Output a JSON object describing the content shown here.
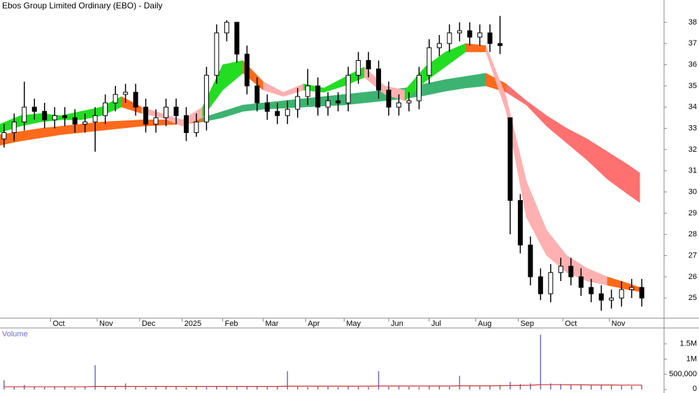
{
  "chart_data": [
    {
      "type": "candlestick",
      "title": "Ebos Group Limited Ordinary (EBO) - Daily",
      "xlim": [
        0,
        328
      ],
      "ylim": [
        24.05,
        39.05
      ],
      "yticks": [
        25,
        26,
        27,
        28,
        29,
        30,
        31,
        32,
        33,
        34,
        35,
        36,
        37,
        38
      ],
      "xticks": [
        {
          "value": 25,
          "label": "Oct"
        },
        {
          "value": 48,
          "label": "Nov"
        },
        {
          "value": 69,
          "label": "Dec"
        },
        {
          "value": 90,
          "label": "2025"
        },
        {
          "value": 110,
          "label": "Feb"
        },
        {
          "value": 130,
          "label": "Mar"
        },
        {
          "value": 151,
          "label": "Apr"
        },
        {
          "value": 170,
          "label": "May"
        },
        {
          "value": 192,
          "label": "Jun"
        },
        {
          "value": 212,
          "label": "Jul"
        },
        {
          "value": 235,
          "label": "Aug"
        },
        {
          "value": 256,
          "label": "Sep"
        },
        {
          "value": 278,
          "label": "Oct"
        },
        {
          "value": 301,
          "label": "Nov"
        }
      ],
      "up_color": "#ffffff",
      "down_color": "#000000",
      "edge_color": "#000000",
      "x": [
        2,
        7,
        12,
        17,
        22,
        27,
        32,
        37,
        42,
        47,
        52,
        57,
        62,
        67,
        72,
        77,
        82,
        87,
        92,
        97,
        102,
        107,
        112,
        117,
        122,
        127,
        132,
        137,
        142,
        147,
        152,
        157,
        162,
        167,
        172,
        177,
        182,
        187,
        192,
        197,
        202,
        207,
        212,
        217,
        222,
        227,
        232,
        237,
        242,
        247,
        252,
        257,
        262,
        267,
        272,
        277,
        282,
        287,
        292,
        297,
        302,
        307,
        312,
        317
      ],
      "open": [
        32.5,
        32.8,
        33.3,
        34.0,
        33.8,
        33.4,
        33.6,
        33.5,
        33.2,
        33.3,
        33.6,
        34.2,
        34.6,
        34.7,
        34.0,
        33.2,
        33.5,
        34.0,
        33.6,
        32.8,
        33.3,
        35.5,
        37.5,
        38.0,
        36.5,
        35.0,
        34.2,
        33.8,
        33.6,
        33.9,
        34.5,
        35.0,
        34.0,
        34.3,
        34.2,
        35.5,
        36.2,
        35.8,
        34.8,
        34.0,
        34.2,
        34.3,
        35.5,
        36.8,
        37.0,
        37.5,
        37.6,
        37.3,
        37.5,
        37.0,
        33.5,
        29.6,
        27.5,
        26.0,
        25.2,
        26.2,
        26.5,
        26.0,
        25.5,
        25.2,
        24.9,
        25.0,
        25.4,
        25.5
      ],
      "high": [
        33.2,
        33.7,
        35.2,
        34.4,
        34.2,
        34.0,
        34.0,
        33.9,
        33.7,
        34.0,
        34.6,
        35.0,
        35.1,
        35.1,
        34.4,
        33.9,
        34.4,
        34.4,
        34.0,
        33.7,
        35.9,
        37.9,
        38.1,
        38.0,
        36.9,
        35.4,
        34.6,
        34.2,
        34.3,
        34.9,
        35.8,
        35.4,
        34.7,
        34.7,
        35.9,
        36.6,
        36.6,
        36.2,
        35.2,
        34.6,
        34.7,
        35.9,
        37.2,
        37.4,
        37.9,
        38.0,
        38.0,
        37.9,
        37.9,
        38.3,
        33.5,
        29.9,
        27.9,
        26.4,
        26.6,
        26.9,
        26.9,
        26.4,
        25.9,
        25.6,
        25.4,
        25.8,
        25.9,
        25.9
      ],
      "low": [
        32.1,
        32.4,
        32.9,
        33.4,
        33.0,
        33.0,
        33.1,
        32.8,
        32.8,
        31.9,
        33.2,
        33.8,
        34.2,
        33.6,
        32.8,
        32.8,
        33.1,
        33.2,
        32.4,
        32.6,
        32.9,
        35.1,
        37.1,
        36.1,
        34.6,
        33.8,
        33.4,
        33.2,
        33.2,
        33.5,
        34.1,
        33.6,
        33.6,
        33.8,
        33.8,
        35.1,
        35.4,
        34.4,
        33.6,
        33.6,
        33.8,
        33.9,
        35.1,
        36.4,
        36.6,
        37.1,
        36.9,
        36.9,
        36.6,
        36.5,
        28.0,
        27.1,
        25.6,
        24.9,
        24.8,
        25.8,
        25.6,
        25.1,
        24.8,
        24.4,
        24.5,
        24.6,
        25.0,
        24.6
      ],
      "close": [
        32.8,
        33.3,
        34.0,
        33.8,
        33.4,
        33.6,
        33.5,
        33.2,
        33.3,
        33.6,
        34.2,
        34.6,
        34.7,
        34.0,
        33.2,
        33.5,
        34.0,
        33.6,
        32.8,
        33.3,
        35.5,
        37.5,
        38.0,
        36.5,
        35.0,
        34.2,
        33.8,
        33.6,
        33.9,
        34.5,
        35.0,
        34.0,
        34.3,
        34.2,
        35.5,
        36.2,
        35.8,
        34.8,
        34.0,
        34.2,
        34.3,
        35.5,
        36.8,
        37.0,
        37.5,
        37.6,
        37.3,
        37.5,
        37.0,
        36.9,
        29.6,
        27.5,
        26.0,
        25.2,
        26.2,
        26.5,
        26.0,
        25.5,
        25.2,
        24.9,
        25.0,
        25.4,
        25.5,
        25.0
      ],
      "bands": [
        {
          "x": [
            0,
            10,
            20,
            30,
            40,
            50,
            60,
            70,
            80,
            90,
            100,
            110,
            120,
            130,
            140,
            150,
            160,
            170,
            180,
            190,
            200,
            210,
            220,
            230,
            240,
            250,
            260,
            270,
            280,
            290,
            300,
            310,
            316
          ],
          "upper": [
            32.7,
            32.85,
            33.0,
            33.1,
            33.2,
            33.3,
            33.35,
            33.4,
            33.4,
            33.4,
            33.5,
            33.8,
            34.1,
            34.2,
            34.3,
            34.4,
            34.5,
            34.6,
            34.7,
            34.8,
            34.9,
            35.1,
            35.3,
            35.45,
            35.6,
            35.1,
            34.3,
            33.6,
            33.0,
            32.5,
            31.9,
            31.3,
            30.9
          ],
          "lower": [
            32.2,
            32.4,
            32.55,
            32.7,
            32.8,
            32.9,
            33.0,
            33.1,
            33.15,
            33.2,
            33.3,
            33.5,
            33.8,
            33.9,
            33.95,
            34.0,
            34.05,
            34.1,
            34.2,
            34.3,
            34.4,
            34.55,
            34.75,
            34.9,
            35.0,
            34.7,
            34.1,
            33.1,
            32.3,
            31.5,
            30.6,
            29.9,
            29.5
          ],
          "colors": [
            "#ff6a1a",
            "#ff6a1a",
            "#ff6a1a",
            "#ff6a1a",
            "#ff6a1a",
            "#ff6a1a",
            "#ff6a1a",
            "#ff6a1a",
            "#ff6a1a",
            "#ff6a1a",
            "#3cb371",
            "#3cb371",
            "#3cb371",
            "#3cb371",
            "#3cb371",
            "#3cb371",
            "#3cb371",
            "#3cb371",
            "#3cb371",
            "#3cb371",
            "#3cb371",
            "#3cb371",
            "#3cb371",
            "#3cb371",
            "#ff6a1a",
            "#ff7070",
            "#ff7070",
            "#ff7070",
            "#ff7070",
            "#ff7070",
            "#ff7070",
            "#ff7070"
          ]
        },
        {
          "x": [
            0,
            10,
            20,
            30,
            40,
            50,
            60,
            70,
            80,
            90,
            100,
            110,
            120,
            130,
            140,
            150,
            160,
            170,
            180,
            190,
            200,
            210,
            220,
            230,
            240,
            250,
            260,
            270,
            280,
            290,
            300,
            310,
            316
          ],
          "upper": [
            33.2,
            33.6,
            33.7,
            33.6,
            33.8,
            34.0,
            34.5,
            34.0,
            33.7,
            33.4,
            34.0,
            36.0,
            36.2,
            35.2,
            34.7,
            35.1,
            34.9,
            35.4,
            35.9,
            35.0,
            34.8,
            35.9,
            36.6,
            37.0,
            36.9,
            34.5,
            30.5,
            28.2,
            27.0,
            26.4,
            26.0,
            25.7,
            25.5
          ],
          "lower": [
            32.8,
            33.1,
            33.3,
            33.4,
            33.4,
            33.6,
            34.0,
            33.7,
            33.5,
            33.1,
            33.5,
            34.8,
            35.6,
            34.8,
            34.5,
            34.8,
            34.7,
            35.0,
            35.4,
            34.6,
            34.3,
            35.2,
            35.9,
            36.6,
            36.6,
            33.8,
            28.8,
            27.0,
            26.2,
            25.8,
            25.6,
            25.4,
            25.3
          ],
          "colors": [
            "#22dd22",
            "#22dd22",
            "#22dd22",
            "#22dd22",
            "#22dd22",
            "#22dd22",
            "#ff6a1a",
            "#ffb0b0",
            "#ffb0b0",
            "#ffb0b0",
            "#22dd22",
            "#22dd22",
            "#ff6a1a",
            "#ffb0b0",
            "#ffb0b0",
            "#22dd22",
            "#22dd22",
            "#22dd22",
            "#ffb0b0",
            "#ffb0b0",
            "#22dd22",
            "#22dd22",
            "#22dd22",
            "#ff6a1a",
            "#ffb0b0",
            "#ffb0b0",
            "#ffb0b0",
            "#ffb0b0",
            "#ffb0b0",
            "#ffb0b0",
            "#ff6a1a",
            "#ff6a1a"
          ]
        }
      ]
    },
    {
      "type": "volume",
      "title": "Volume",
      "xlim": [
        0,
        328
      ],
      "ylim": [
        0,
        2000000
      ],
      "yticks": [
        0,
        {
          "value": 500000,
          "label": "500,000"
        },
        {
          "value": 1000000,
          "label": "1M"
        },
        {
          "value": 1500000,
          "label": "1.5M"
        }
      ],
      "color": "#6b6bc8",
      "average_color": "#d03030",
      "x": [
        2,
        7,
        12,
        17,
        22,
        27,
        32,
        37,
        42,
        47,
        52,
        57,
        62,
        67,
        72,
        77,
        82,
        87,
        92,
        97,
        102,
        107,
        112,
        117,
        122,
        127,
        132,
        137,
        142,
        147,
        152,
        157,
        162,
        167,
        172,
        177,
        182,
        187,
        192,
        197,
        202,
        207,
        212,
        217,
        222,
        227,
        232,
        237,
        242,
        247,
        252,
        257,
        262,
        267,
        272,
        277,
        282,
        287,
        292,
        297,
        302,
        307,
        312,
        317
      ],
      "values": [
        300000,
        90000,
        150000,
        80000,
        70000,
        90000,
        80000,
        70000,
        80000,
        800000,
        90000,
        80000,
        200000,
        80000,
        70000,
        80000,
        100000,
        80000,
        70000,
        90000,
        80000,
        100000,
        90000,
        80000,
        90000,
        100000,
        80000,
        90000,
        600000,
        90000,
        80000,
        100000,
        90000,
        80000,
        100000,
        90000,
        80000,
        600000,
        90000,
        100000,
        90000,
        80000,
        100000,
        120000,
        90000,
        450000,
        110000,
        100000,
        120000,
        150000,
        250000,
        180000,
        200000,
        1800000,
        200000,
        180000,
        170000,
        160000,
        150000,
        140000,
        150000,
        130000,
        120000,
        140000
      ],
      "average": [
        90000,
        90000,
        90000,
        90000,
        90000,
        90000,
        90000,
        90000,
        90000,
        100000,
        100000,
        100000,
        100000,
        100000,
        100000,
        100000,
        100000,
        100000,
        100000,
        100000,
        100000,
        100000,
        100000,
        100000,
        100000,
        100000,
        100000,
        100000,
        110000,
        110000,
        110000,
        110000,
        110000,
        110000,
        110000,
        110000,
        110000,
        115000,
        115000,
        115000,
        115000,
        115000,
        115000,
        115000,
        115000,
        120000,
        120000,
        120000,
        120000,
        125000,
        130000,
        135000,
        140000,
        160000,
        160000,
        160000,
        155000,
        155000,
        150000,
        150000,
        150000,
        145000,
        145000,
        145000
      ]
    }
  ]
}
